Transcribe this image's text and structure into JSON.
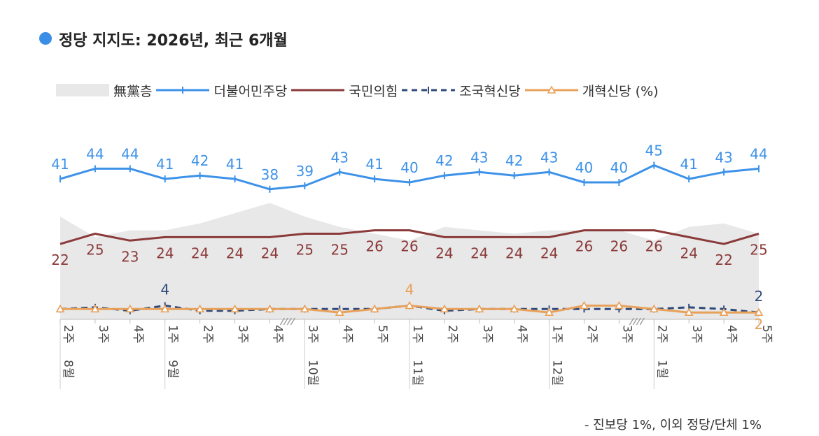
{
  "title": "정당 지지도: 2026년, 최근 6개월",
  "colors": {
    "title_dot": "#3a8ee6",
    "undecided_fill": "#e8e8e8",
    "democratic": "#3d92e8",
    "ppp": "#8b3a3a",
    "rebuilding": "#2f4a7a",
    "reform": "#e8a15a",
    "tick_text": "#444444"
  },
  "legend": {
    "undecided": "無黨층",
    "democratic": "더불어민주당",
    "ppp": "국민의힘",
    "rebuilding": "조국혁신당",
    "reform": "개혁신당 (%)"
  },
  "footnote": "- 진보당 1%, 이외 정당/단체 1%",
  "chart_data": {
    "type": "line",
    "x": [
      {
        "week": "2주",
        "month": "8월"
      },
      {
        "week": "3주",
        "month": ""
      },
      {
        "week": "4주",
        "month": ""
      },
      {
        "week": "1주",
        "month": "9월"
      },
      {
        "week": "2주",
        "month": ""
      },
      {
        "week": "3주",
        "month": ""
      },
      {
        "week": "4주",
        "month": ""
      },
      {
        "week": "3주",
        "month": "10월"
      },
      {
        "week": "4주",
        "month": ""
      },
      {
        "week": "5주",
        "month": ""
      },
      {
        "week": "1주",
        "month": "11월"
      },
      {
        "week": "2주",
        "month": ""
      },
      {
        "week": "3주",
        "month": ""
      },
      {
        "week": "4주",
        "month": ""
      },
      {
        "week": "1주",
        "month": "12월"
      },
      {
        "week": "2주",
        "month": ""
      },
      {
        "week": "3주",
        "month": ""
      },
      {
        "week": "2주",
        "month": "1월"
      },
      {
        "week": "3주",
        "month": ""
      },
      {
        "week": "4주",
        "month": ""
      },
      {
        "week": "5주",
        "month": ""
      }
    ],
    "axis_breaks_after": [
      6,
      16
    ],
    "series": [
      {
        "name": "無黨층",
        "kind": "area",
        "values": [
          30,
          24,
          26,
          26,
          28,
          31,
          34,
          30,
          27,
          25,
          23,
          27,
          26,
          25,
          26,
          26,
          26,
          23,
          27,
          28,
          25
        ]
      },
      {
        "name": "더불어민주당",
        "kind": "line",
        "marker": "plus",
        "labels": "all",
        "values": [
          41,
          44,
          44,
          41,
          42,
          41,
          38,
          39,
          43,
          41,
          40,
          42,
          43,
          42,
          43,
          40,
          40,
          45,
          41,
          43,
          44
        ]
      },
      {
        "name": "국민의힘",
        "kind": "line",
        "marker": "none",
        "labels": "all",
        "values": [
          22,
          25,
          23,
          24,
          24,
          24,
          24,
          25,
          25,
          26,
          26,
          24,
          24,
          24,
          24,
          26,
          26,
          26,
          24,
          22,
          25
        ]
      },
      {
        "name": "조국혁신당",
        "kind": "dashed",
        "marker": "plus",
        "labels": {
          "3": "4",
          "20": "2"
        },
        "values": [
          3,
          3.5,
          2.5,
          4,
          2.5,
          2.5,
          3,
          3,
          3,
          3,
          4,
          2.5,
          3,
          3,
          3,
          3,
          3,
          3,
          3.5,
          3,
          2
        ]
      },
      {
        "name": "개혁신당",
        "kind": "line",
        "marker": "triangle",
        "labels": {
          "10": "4",
          "20": "2"
        },
        "values": [
          3,
          3,
          3,
          3,
          3,
          3,
          3,
          3,
          2,
          3,
          4,
          3,
          3,
          3,
          2,
          4,
          4,
          3,
          2,
          2,
          2
        ]
      }
    ]
  }
}
